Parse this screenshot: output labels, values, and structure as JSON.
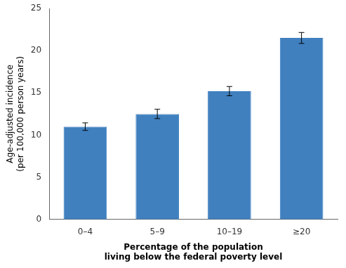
{
  "chart_data": {
    "type": "bar",
    "categories": [
      "0–4",
      "5–9",
      "10–19",
      "≥20"
    ],
    "values": [
      11.0,
      12.5,
      15.2,
      21.5
    ],
    "errors": [
      0.45,
      0.55,
      0.55,
      0.65
    ],
    "color": "#4080bf",
    "xlabel": "Percentage of the population\nliving below the federal poverty level",
    "ylabel": "Age-adjusted incidence\n(per 100,000 person years)",
    "ylim": [
      0,
      25
    ],
    "yticks": [
      0,
      5,
      10,
      15,
      20,
      25
    ],
    "grid": false
  }
}
